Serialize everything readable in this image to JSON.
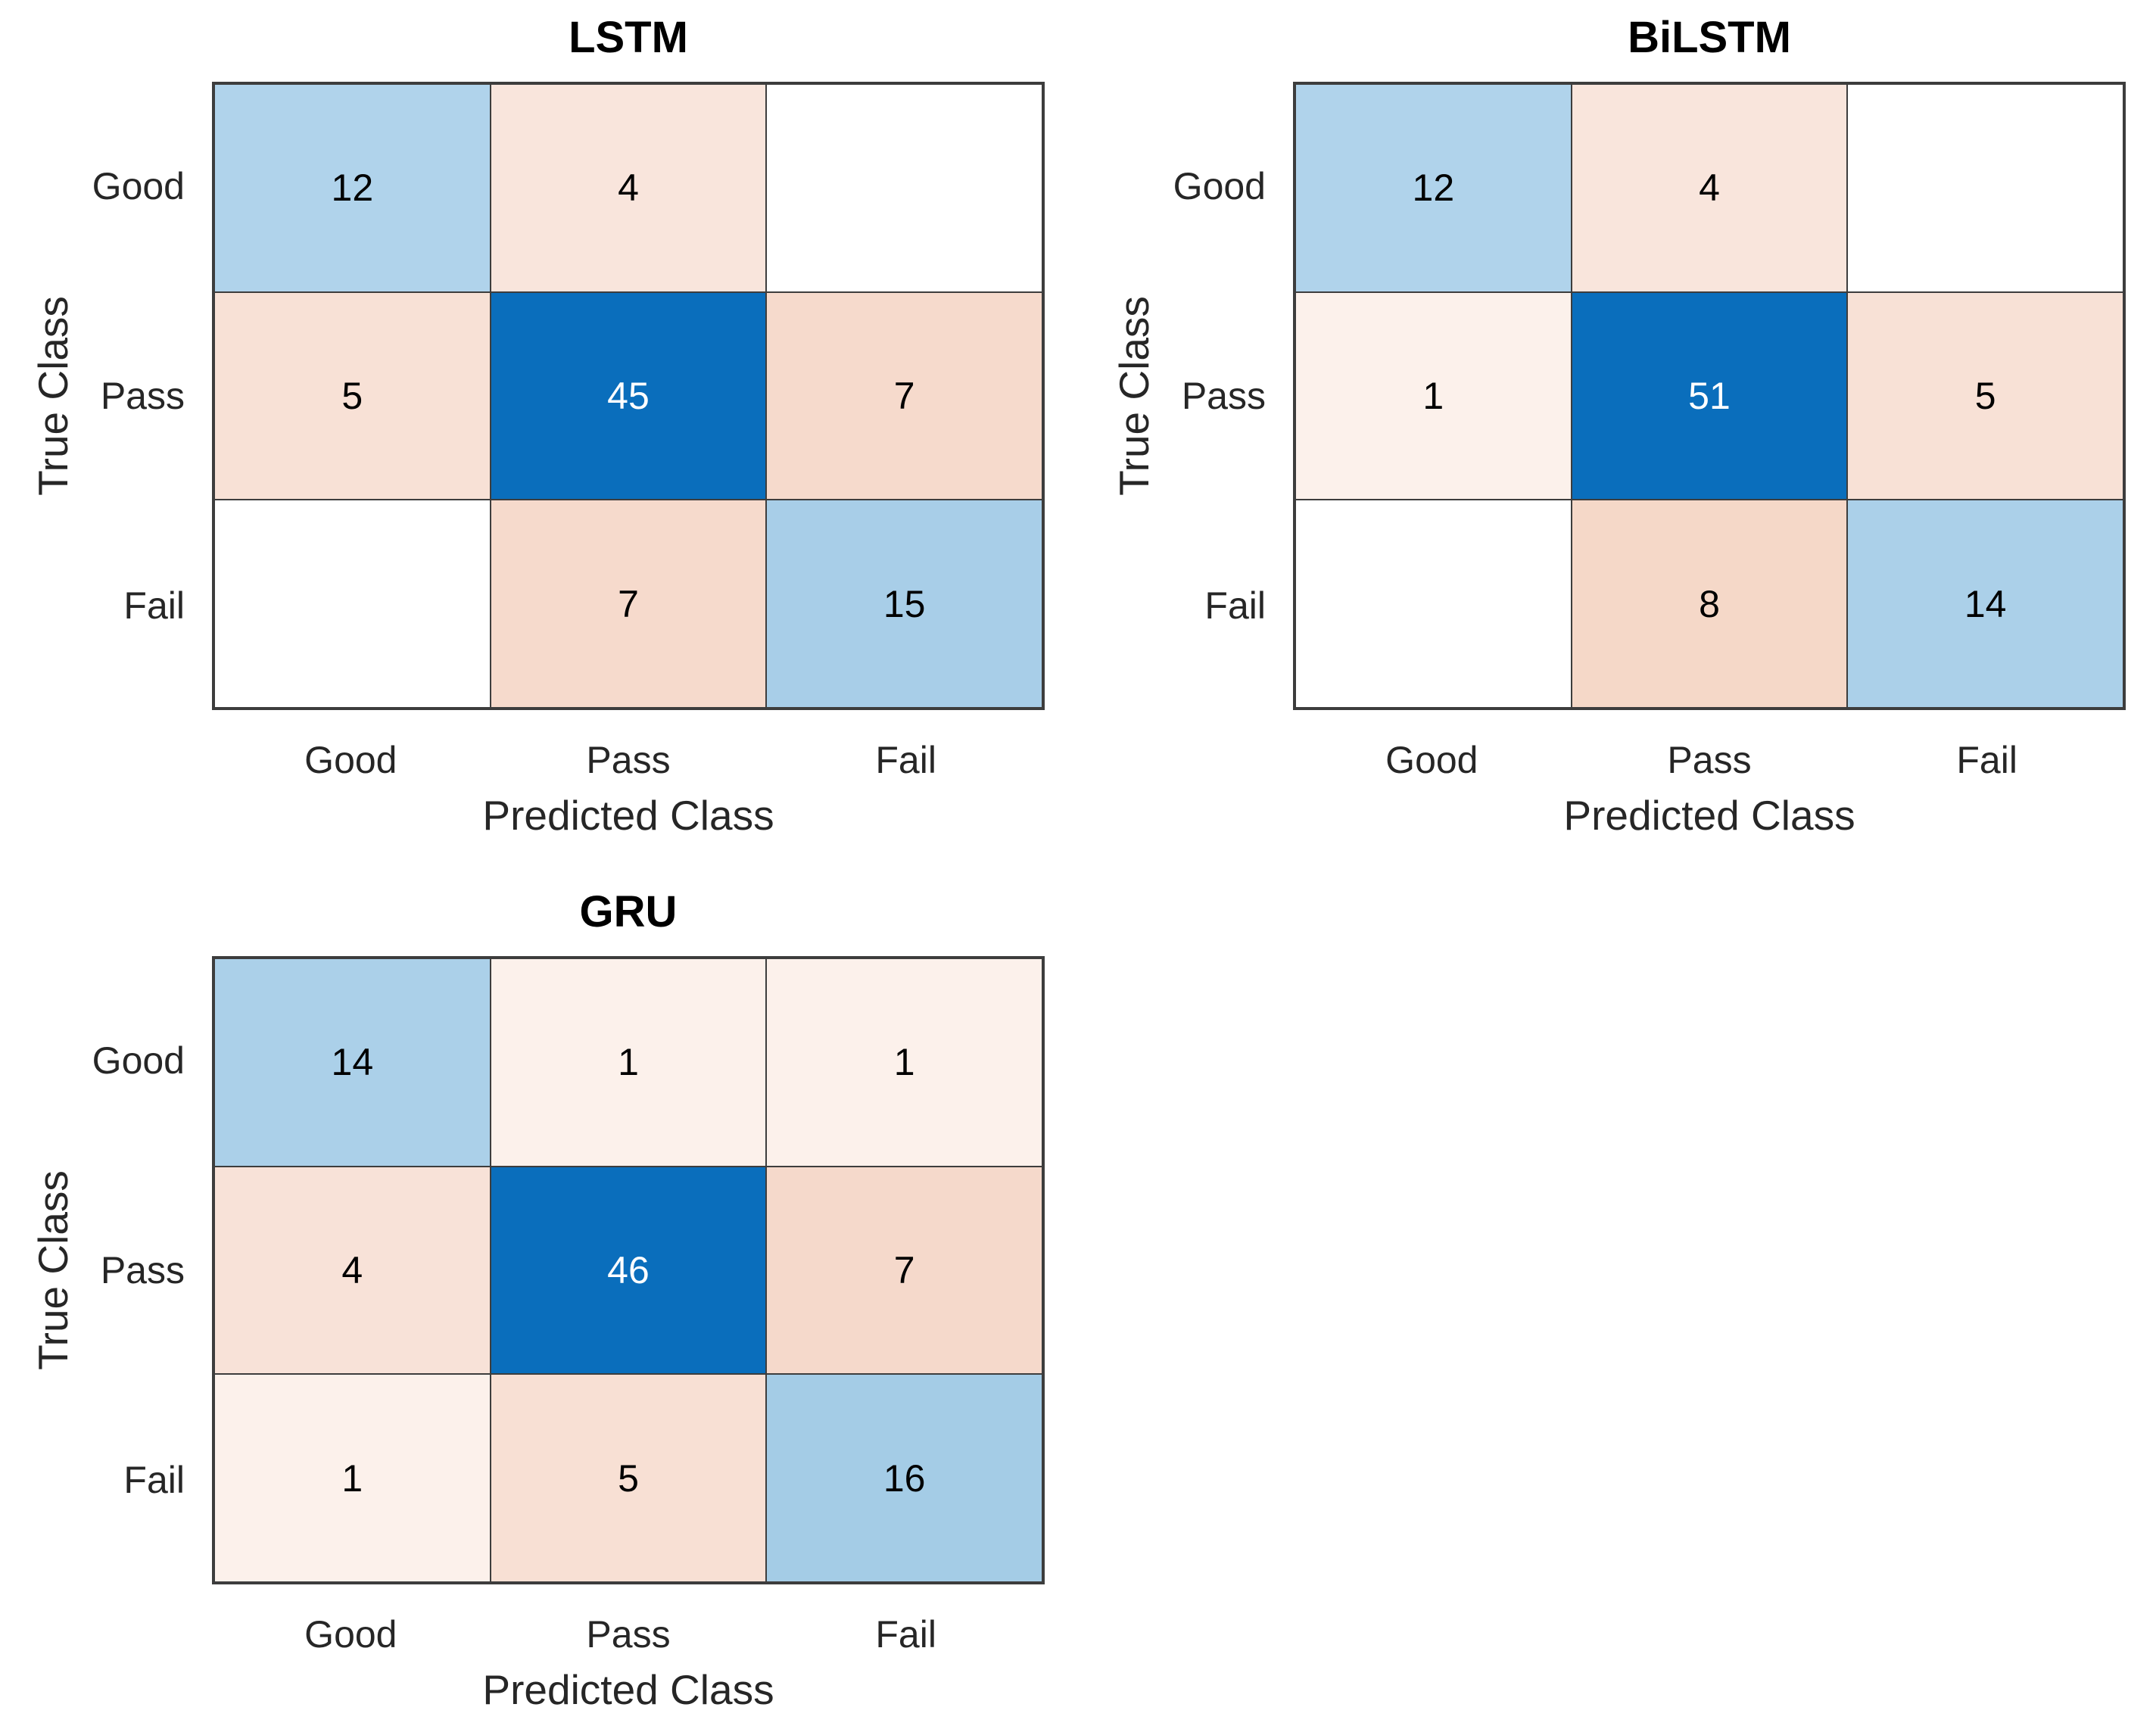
{
  "page_background": "#ffffff",
  "style": {
    "diagonal_base_color": "#0A6EBC",
    "off_diagonal_base_color": "#D95319",
    "grid_line_color": "#3d3d3d",
    "label_color": "#262626",
    "title_color": "#000000"
  },
  "chart_data": [
    {
      "type": "heatmap",
      "subtype": "confusion-matrix",
      "title": "LSTM",
      "xlabel": "Predicted Class",
      "ylabel": "True Class",
      "classes": [
        "Good",
        "Pass",
        "Fail"
      ],
      "matrix": [
        [
          12,
          4,
          null
        ],
        [
          5,
          45,
          7
        ],
        [
          null,
          7,
          15
        ]
      ],
      "cell_bg": [
        [
          "#B0D3EB",
          "#F9E5DC",
          "#FFFFFF"
        ],
        [
          "#F8E1D6",
          "#0A6EBC",
          "#F6DACC"
        ],
        [
          "#FFFFFF",
          "#F6DACC",
          "#A8CEE8"
        ]
      ],
      "cell_fg": [
        [
          "#000000",
          "#000000",
          "#000000"
        ],
        [
          "#000000",
          "#FFFFFF",
          "#000000"
        ],
        [
          "#000000",
          "#000000",
          "#000000"
        ]
      ]
    },
    {
      "type": "heatmap",
      "subtype": "confusion-matrix",
      "title": "BiLSTM",
      "xlabel": "Predicted Class",
      "ylabel": "True Class",
      "classes": [
        "Good",
        "Pass",
        "Fail"
      ],
      "matrix": [
        [
          12,
          4,
          null
        ],
        [
          1,
          51,
          5
        ],
        [
          null,
          8,
          14
        ]
      ],
      "cell_bg": [
        [
          "#B0D3EB",
          "#F9E5DC",
          "#FFFFFF"
        ],
        [
          "#FCF1EB",
          "#0A6EBC",
          "#F8E1D6"
        ],
        [
          "#FFFFFF",
          "#F5D8C8",
          "#ABD0E9"
        ]
      ],
      "cell_fg": [
        [
          "#000000",
          "#000000",
          "#000000"
        ],
        [
          "#000000",
          "#FFFFFF",
          "#000000"
        ],
        [
          "#000000",
          "#000000",
          "#000000"
        ]
      ]
    },
    {
      "type": "heatmap",
      "subtype": "confusion-matrix",
      "title": "GRU",
      "xlabel": "Predicted Class",
      "ylabel": "True Class",
      "classes": [
        "Good",
        "Pass",
        "Fail"
      ],
      "matrix": [
        [
          14,
          1,
          1
        ],
        [
          4,
          46,
          7
        ],
        [
          1,
          5,
          16
        ]
      ],
      "cell_bg": [
        [
          "#ABD0E9",
          "#FCF1EB",
          "#FCF1EB"
        ],
        [
          "#F8E2D8",
          "#0A6EBC",
          "#F5D9CB"
        ],
        [
          "#FCF1EB",
          "#F8E0D4",
          "#A4CCE6"
        ]
      ],
      "cell_fg": [
        [
          "#000000",
          "#000000",
          "#000000"
        ],
        [
          "#000000",
          "#FFFFFF",
          "#000000"
        ],
        [
          "#000000",
          "#000000",
          "#000000"
        ]
      ]
    }
  ]
}
